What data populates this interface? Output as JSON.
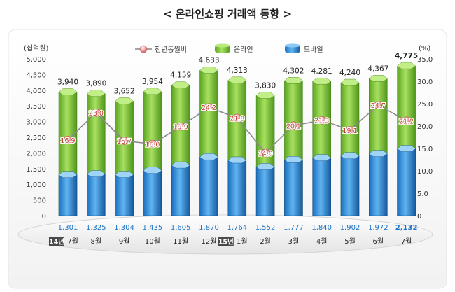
{
  "chart_data": {
    "type": "bar",
    "title": "< 온라인쇼핑 거래액 동향 >",
    "left_unit": "(십억원)",
    "right_unit": "(%)",
    "categories": [
      "7월",
      "8월",
      "9월",
      "10월",
      "11월",
      "12월",
      "1월",
      "2월",
      "3월",
      "4월",
      "5월",
      "6월",
      "7월"
    ],
    "year_badges": [
      {
        "index": 0,
        "label": "14년"
      },
      {
        "index": 6,
        "label": "15년"
      }
    ],
    "left_axis": {
      "ylim": [
        0,
        5000
      ],
      "ticks": [
        "0",
        "500",
        "1,000",
        "1,500",
        "2,000",
        "2,500",
        "3,000",
        "3,500",
        "4,000",
        "4,500",
        "5,000"
      ]
    },
    "right_axis": {
      "ylim": [
        0,
        35
      ],
      "ticks": [
        "0",
        "5.0",
        "10.0",
        "15.0",
        "20.0",
        "25.0",
        "30.0",
        "35.0"
      ]
    },
    "legend": {
      "placement": "top",
      "items": [
        {
          "label": "전년동월비",
          "kind": "line"
        },
        {
          "label": "온라인",
          "kind": "bar-green"
        },
        {
          "label": "모바일",
          "kind": "bar-blue"
        }
      ]
    },
    "series": [
      {
        "name": "온라인",
        "axis": "left",
        "color": "#7cc53a",
        "values": [
          3940,
          3890,
          3652,
          3954,
          4159,
          4633,
          4313,
          3830,
          4302,
          4281,
          4240,
          4367,
          4775
        ],
        "labels": [
          "3,940",
          "3,890",
          "3,652",
          "3,954",
          "4,159",
          "4,633",
          "4,313",
          "3,830",
          "4,302",
          "4,281",
          "4,240",
          "4,367",
          "4,775"
        ]
      },
      {
        "name": "모바일",
        "axis": "left",
        "color": "#2f8fdc",
        "values": [
          1301,
          1325,
          1304,
          1435,
          1605,
          1870,
          1764,
          1552,
          1777,
          1840,
          1902,
          1972,
          2132
        ],
        "labels": [
          "1,301",
          "1,325",
          "1,304",
          "1,435",
          "1,605",
          "1,870",
          "1,764",
          "1,552",
          "1,777",
          "1,840",
          "1,902",
          "1,972",
          "2,132"
        ]
      },
      {
        "name": "전년동월비",
        "axis": "right",
        "color": "#e08080",
        "values": [
          16.9,
          23.0,
          16.7,
          16.0,
          19.9,
          24.2,
          21.8,
          14.0,
          20.1,
          21.3,
          19.1,
          24.7,
          21.2
        ],
        "labels": [
          "16.9",
          "23.0",
          "16.7",
          "16.0",
          "19.9",
          "24.2",
          "21.8",
          "14.0",
          "20.1",
          "21.3",
          "19.1",
          "24.7",
          "21.2"
        ]
      }
    ]
  }
}
